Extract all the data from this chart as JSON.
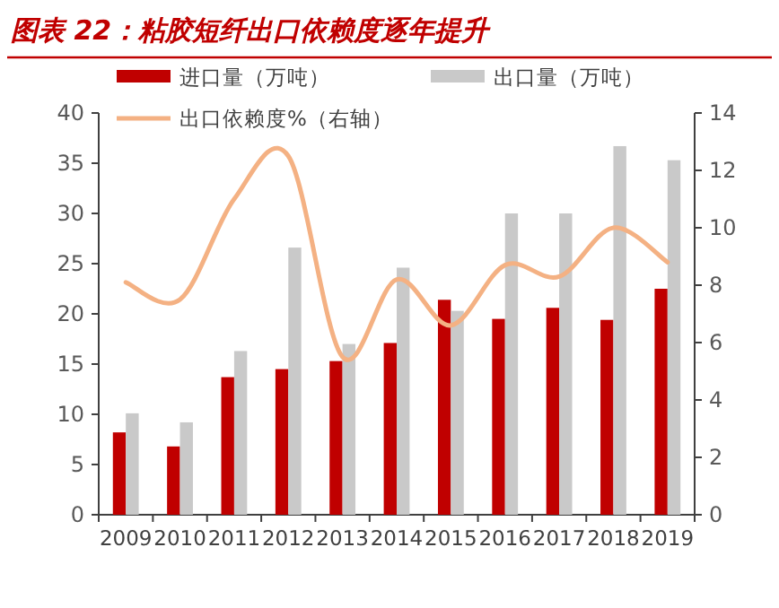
{
  "chart_data": {
    "type": "bar",
    "title": "图表 22：粘胶短纤出口依赖度逐年提升",
    "categories": [
      "2009",
      "2010",
      "2011",
      "2012",
      "2013",
      "2014",
      "2015",
      "2016",
      "2017",
      "2018",
      "2019"
    ],
    "series": [
      {
        "name": "进口量（万吨）",
        "color": "#c00000",
        "values": [
          8.2,
          6.8,
          13.7,
          14.5,
          15.3,
          17.1,
          21.4,
          19.5,
          20.6,
          19.4,
          22.5
        ]
      },
      {
        "name": "出口量（万吨）",
        "color": "#c9c9c9",
        "values": [
          10.1,
          9.2,
          16.3,
          26.6,
          17.0,
          24.6,
          20.3,
          30.0,
          30.0,
          36.7,
          35.3
        ]
      },
      {
        "name": "出口依赖度%（右轴）",
        "type": "line",
        "axis": "y2",
        "color": "#f4b183",
        "values": [
          8.1,
          7.5,
          11.0,
          12.5,
          5.5,
          8.2,
          6.6,
          8.7,
          8.3,
          10.0,
          8.8
        ]
      }
    ],
    "ylim": [
      0,
      40
    ],
    "yticks": [
      0,
      5,
      10,
      15,
      20,
      25,
      30,
      35,
      40
    ],
    "y2lim": [
      0,
      14
    ],
    "y2ticks": [
      0,
      2,
      4,
      6,
      8,
      10,
      12,
      14
    ],
    "legend": "top"
  }
}
